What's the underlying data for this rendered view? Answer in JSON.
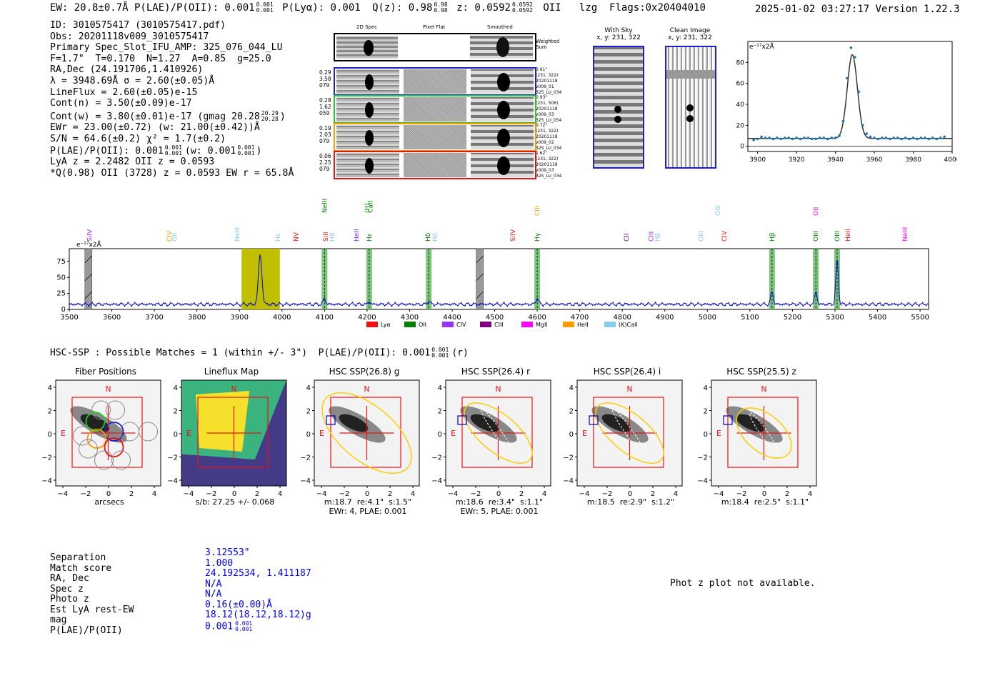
{
  "header": {
    "left": "EW: 20.8±0.7Å  P(LAE)/P(OII): 0.001",
    "plae_sup": "0.001",
    "plae_sub": "0.001",
    "lya": "P(Lyα): 0.001",
    "qz": "Q(z): 0.98",
    "qz_sup": "0.98",
    "qz_sub": "0.98",
    "z": "z: 0.0592",
    "z_sup": "0.0592",
    "z_sub": "0.0592",
    "z_rest": "OII   lzg  Flags:0x20404010",
    "right": "2025-01-02 03:27:17  Version 1.22.3"
  },
  "info": {
    "lines": [
      "ID: 3010575417 (3010575417.pdf)",
      "Obs: 20201118v009_3010575417",
      "Primary Spec_Slot_IFU_AMP: 325_076_044_LU",
      "F=1.7\"  T=0.170  N=1.27  A=0.85  g=25.0",
      "RA,Dec (24.191706,1.410926)",
      "λ = 3948.69Å  σ = 2.60(±0.05)Å",
      "LineFlux = 2.60(±0.05)e-15",
      "Cont(n) = 3.50(±0.09)e-17"
    ],
    "contw": "Cont(w) = 3.80(±0.01)e-17 (gmag 20.28",
    "contw_sup": "20.29",
    "contw_sub": "20.28",
    "ewr": "EWr = 23.00(±0.72) (w: 21.00(±0.42))Å",
    "sn": "S/N = 64.6(±0.2)  χ² = 1.7(±0.2)",
    "plae": "P(LAE)/P(OII): 0.001",
    "plae_sup": "0.001",
    "plae_sub": "0.001",
    "plae_w": "(w: 0.001",
    "plae_w_sup": "0.001",
    "plae_w_sub": "0.001",
    "lyaz": "LyA z = 2.2482  OII z = 0.0593",
    "q": "*Q(0.98) OII (3728) z = 0.0593  EW r = 65.8Å"
  },
  "cutouts": {
    "col_labels": [
      "2D Spec",
      "Pixel Flat",
      "Smoothed"
    ],
    "weighted": "Weighted Sum",
    "rows": [
      {
        "left": [
          "0.29",
          "3.58",
          "079"
        ],
        "right": [
          "0.91\"",
          "(231, 322)",
          "20201118",
          "v009_01",
          "325_LU_034"
        ],
        "color": "#1f1fcc"
      },
      {
        "left": [
          "0.28",
          "1.62",
          "059"
        ],
        "right": [
          "0.93\"",
          "(231, 506)",
          "20201118",
          "v009_03",
          "325_LU_054"
        ],
        "color": "#22cc22"
      },
      {
        "left": [
          "0.19",
          "2.03",
          "079"
        ],
        "right": [
          "0.72\"",
          "(231, 322)",
          "20201118",
          "v009_02",
          "325_LU_034"
        ],
        "color": "#ff9900"
      },
      {
        "left": [
          "0.06",
          "2.25",
          "079"
        ],
        "right": [
          "1.62\"",
          "(231, 322)",
          "20201118",
          "v009_03",
          "325_LU_034"
        ],
        "color": "#ee1111"
      }
    ]
  },
  "sky": {
    "with_sky": "With Sky",
    "with_sky_xy": "x, y: 231, 322",
    "clean": "Clean Image",
    "clean_xy": "x, y: 231, 322"
  },
  "chart_data": [
    {
      "type": "line",
      "title": "",
      "ylabel": "e⁻¹⁷x2Å",
      "xlim": [
        3895,
        4000
      ],
      "ylim": [
        -5,
        100
      ],
      "xticks": [
        3900,
        3920,
        3940,
        3960,
        3980,
        4000
      ],
      "yticks": [
        0,
        20,
        40,
        60,
        80
      ],
      "points_x": [
        3898,
        3900,
        3902,
        3904,
        3906,
        3908,
        3910,
        3912,
        3914,
        3916,
        3918,
        3920,
        3922,
        3924,
        3926,
        3928,
        3930,
        3932,
        3934,
        3936,
        3938,
        3940,
        3942,
        3944,
        3946,
        3948,
        3950,
        3952,
        3954,
        3956,
        3958,
        3960,
        3962,
        3964,
        3966,
        3968,
        3970,
        3972,
        3974,
        3976,
        3978,
        3980,
        3982,
        3984,
        3986,
        3988,
        3990,
        3992,
        3994,
        3996
      ],
      "points_y": [
        6,
        7,
        9,
        8,
        8,
        7,
        8,
        7,
        8,
        8,
        7,
        8,
        7,
        8,
        8,
        7,
        7,
        8,
        8,
        7,
        8,
        8,
        10,
        24,
        65,
        94,
        85,
        52,
        20,
        12,
        9,
        8,
        7,
        8,
        8,
        7,
        8,
        8,
        7,
        8,
        7,
        8,
        7,
        8,
        8,
        7,
        8,
        7,
        8,
        9
      ],
      "fit_center": 3948.7,
      "fit_sigma": 2.6,
      "fit_amp": 80,
      "fit_base": 7.5
    },
    {
      "type": "line",
      "ylabel": "e⁻¹⁷x2Å",
      "xlim": [
        3500,
        5520
      ],
      "ylim": [
        0,
        95
      ],
      "xticks": [
        3500,
        3600,
        3700,
        3800,
        3900,
        4000,
        4100,
        4200,
        4300,
        4400,
        4500,
        4600,
        4700,
        4800,
        4900,
        5000,
        5100,
        5200,
        5300,
        5400,
        5500
      ],
      "yticks": [
        0,
        25,
        50,
        75
      ],
      "peaks": [
        {
          "x": 3948.7,
          "amp": 78,
          "w": 4
        },
        {
          "x": 4100,
          "amp": 9,
          "w": 3
        },
        {
          "x": 4205,
          "amp": 4,
          "w": 3
        },
        {
          "x": 4345,
          "amp": 5,
          "w": 3
        },
        {
          "x": 4600,
          "amp": 10,
          "w": 3
        },
        {
          "x": 5152,
          "amp": 20,
          "w": 3
        },
        {
          "x": 5255,
          "amp": 20,
          "w": 3
        },
        {
          "x": 5305,
          "amp": 70,
          "w": 3
        }
      ],
      "baseline": 8,
      "highlight": {
        "x0": 3905,
        "x1": 3995
      },
      "green_bands": [
        4100,
        4205,
        4345,
        4600,
        5152,
        5255,
        5305
      ],
      "hatch_bands": [
        3545,
        4465
      ],
      "lines_above": [
        {
          "label": "SiIV",
          "x": 3548,
          "color": "#a020f0",
          "row": 0
        },
        {
          "label": "CIV",
          "x": 3735,
          "color": "#ff9900",
          "row": 0
        },
        {
          "label": "OII",
          "x": 3748,
          "color": "#87ceeb",
          "row": 0
        },
        {
          "label": "NeIII",
          "x": 3895,
          "color": "#87ceeb",
          "row": 0
        },
        {
          "label": "Hε",
          "x": 3990,
          "color": "#87ceeb",
          "row": 0
        },
        {
          "label": "NV",
          "x": 4033,
          "color": "#ee1111",
          "row": 0
        },
        {
          "label": "SiII",
          "x": 4103,
          "color": "#ee1111",
          "row": 0
        },
        {
          "label": "H8",
          "x": 4118,
          "color": "#87ceeb",
          "row": 0
        },
        {
          "label": "HeII",
          "x": 4175,
          "color": "#a020f0",
          "row": 0
        },
        {
          "label": "Hε",
          "x": 4205,
          "color": "#008000",
          "row": 0
        },
        {
          "label": "Hδ",
          "x": 4343,
          "color": "#008000",
          "row": 0
        },
        {
          "label": "Hδ",
          "x": 4360,
          "color": "#87ceeb",
          "row": 0
        },
        {
          "label": "SiIV",
          "x": 4543,
          "color": "#ee1111",
          "row": 0
        },
        {
          "label": "Hγ",
          "x": 4600,
          "color": "#008000",
          "row": 0
        },
        {
          "label": "CII",
          "x": 4810,
          "color": "#800080",
          "row": 0
        },
        {
          "label": "CIII",
          "x": 4868,
          "color": "#a020f0",
          "row": 0
        },
        {
          "label": "Hβ",
          "x": 4883,
          "color": "#87ceeb",
          "row": 0
        },
        {
          "label": "OIII",
          "x": 4985,
          "color": "#87ceeb",
          "row": 0
        },
        {
          "label": "CIV",
          "x": 5040,
          "color": "#ee1111",
          "row": 0
        },
        {
          "label": "Hβ",
          "x": 5152,
          "color": "#008000",
          "row": 0
        },
        {
          "label": "OIII",
          "x": 5255,
          "color": "#008000",
          "row": 0
        },
        {
          "label": "OIII",
          "x": 5305,
          "color": "#008000",
          "row": 0
        },
        {
          "label": "HeII",
          "x": 5330,
          "color": "#ee1111",
          "row": 0
        },
        {
          "label": "NeIII",
          "x": 5465,
          "color": "#ff00ff",
          "row": 0
        },
        {
          "label": "NeIII",
          "x": 4100,
          "color": "#008000",
          "row": 1
        },
        {
          "label": "(H)",
          "x": 4200,
          "color": "#008000",
          "row": 1
        },
        {
          "label": "CaII",
          "x": 4208,
          "color": "#008000",
          "row": 1
        },
        {
          "label": "CIII",
          "x": 4600,
          "color": "#ff9900",
          "row": 2
        },
        {
          "label": "OIII",
          "x": 5025,
          "color": "#87ceeb",
          "row": 2
        },
        {
          "label": "OII",
          "x": 5255,
          "color": "#ff00ff",
          "row": 2
        }
      ],
      "legend": [
        {
          "label": "Lyα",
          "color": "#ee1111"
        },
        {
          "label": "OII",
          "color": "#008000"
        },
        {
          "label": "CIV",
          "color": "#9933ff"
        },
        {
          "label": "CIII",
          "color": "#800080"
        },
        {
          "label": "MgII",
          "color": "#ff00ff"
        },
        {
          "label": "HeII",
          "color": "#ff9900"
        },
        {
          "label": "(K)CaII",
          "color": "#87ceeb"
        }
      ]
    }
  ],
  "hsc": {
    "title": "HSC-SSP : Possible Matches = 1 (within +/- 3\")  P(LAE)/P(OII): 0.001",
    "title_sup": "0.001",
    "title_sub": "0.001",
    "title_suffix": "(r)",
    "panels": [
      {
        "title": "Fiber Positions",
        "cap1": "arcsecs",
        "cap2": ""
      },
      {
        "title": "Lineflux Map",
        "cap1": "s/b: 27.25 +/- 0.068",
        "cap2": ""
      },
      {
        "title": "HSC SSP(26.8) g",
        "cap1": "m:18.7  re:4.1\"  s:1.5\"",
        "cap2": "EWr: 4, PLAE: 0.001"
      },
      {
        "title": "HSC SSP(26.4) r",
        "cap1": "m:18.6  re:3.4\"  s:1.1\"",
        "cap2": "EWr: 5, PLAE: 0.001"
      },
      {
        "title": "HSC SSP(26.4) i",
        "cap1": "m:18.5  re:2.9\"  s:1.2\"",
        "cap2": ""
      },
      {
        "title": "HSC SSP(25.5) z",
        "cap1": "m:18.4  re:2.5\"  s:1.1\"",
        "cap2": ""
      }
    ],
    "ticks": [
      "4",
      "2",
      "0",
      "−2",
      "−4"
    ],
    "xticks": [
      "−4",
      "−2",
      "0",
      "2",
      "4"
    ],
    "n": "N",
    "e": "E"
  },
  "match": {
    "labels": [
      "Separation",
      "Match score",
      "RA, Dec",
      "Spec z",
      "Photo z",
      "Est LyA rest-EW",
      "mag",
      "P(LAE)/P(OII)"
    ],
    "values": [
      "3.12553\"",
      "1.000",
      "24.192534, 1.411187",
      "N/A",
      "N/A",
      "0.16(±0.00)Å",
      "18.12(18.12,18.12)g",
      "0.001"
    ],
    "plae_sup": "0.001",
    "plae_sub": "0.001",
    "photz_note": "Phot z plot not available."
  }
}
